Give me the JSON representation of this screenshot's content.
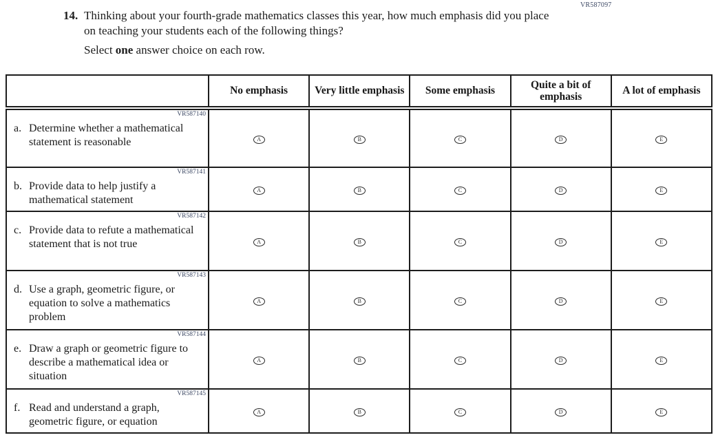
{
  "page": {
    "form_code": "VR587097"
  },
  "question": {
    "number": "14.",
    "text": "Thinking about your fourth-grade mathematics classes this year, how much emphasis did you place on teaching your students each of the following things?",
    "instruction_prefix": "Select ",
    "instruction_bold": "one",
    "instruction_suffix": " answer choice on each row."
  },
  "table": {
    "columns": [
      "No emphasis",
      "Very little emphasis",
      "Some emphasis",
      "Quite a bit of emphasis",
      "A lot of emphasis"
    ],
    "option_letters": [
      "A",
      "B",
      "C",
      "D",
      "E"
    ],
    "rows": [
      {
        "code": "VR587140",
        "letter": "a.",
        "text": "Determine whether a mathematical statement is reasonable",
        "lines": 3
      },
      {
        "code": "VR587141",
        "letter": "b.",
        "text": "Provide data to help justify a mathematical statement",
        "lines": 2
      },
      {
        "code": "VR587142",
        "letter": "c.",
        "text": "Provide data to refute a mathematical statement that is not true",
        "lines": 3
      },
      {
        "code": "VR587143",
        "letter": "d.",
        "text": "Use a graph, geometric figure, or equation to solve a mathematics problem",
        "lines": 3
      },
      {
        "code": "VR587144",
        "letter": "e.",
        "text": "Draw a graph or geometric figure to describe a mathematical idea or situation",
        "lines": 3
      },
      {
        "code": "VR587145",
        "letter": "f.",
        "text": "Read and understand a graph, geometric figure, or equation",
        "lines": 2
      }
    ]
  }
}
